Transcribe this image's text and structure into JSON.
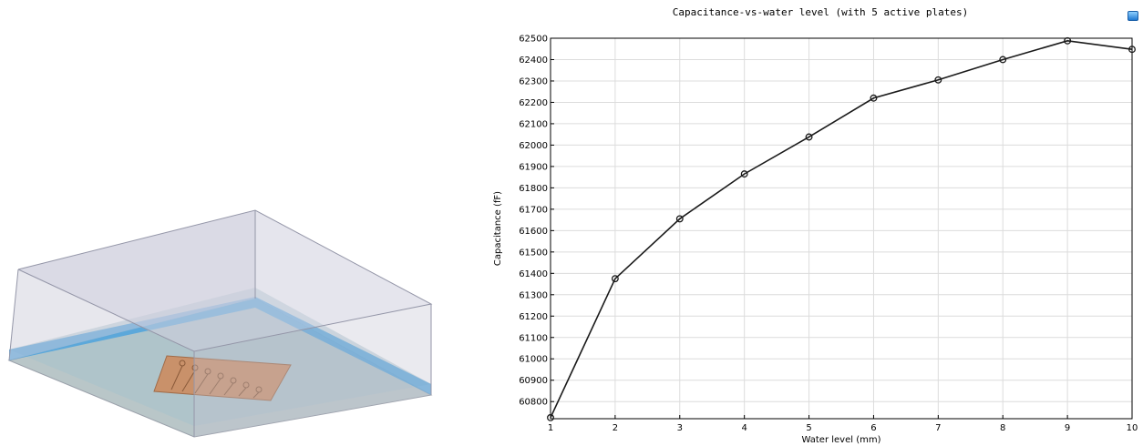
{
  "chart_data": {
    "type": "line",
    "title": "Capacitance-vs-water level (with 5 active plates)",
    "xlabel": "Water level (mm)",
    "ylabel": "Capacitance (fF)",
    "xlim": [
      1,
      10
    ],
    "ylim": [
      60720,
      62500
    ],
    "x_ticks": [
      1,
      2,
      3,
      4,
      5,
      6,
      7,
      8,
      9,
      10
    ],
    "y_ticks": [
      60800,
      60900,
      61000,
      61100,
      61200,
      61300,
      61400,
      61500,
      61600,
      61700,
      61800,
      61900,
      62000,
      62100,
      62200,
      62300,
      62400,
      62500
    ],
    "grid": true,
    "marker": "circle",
    "line_color": "#1a1a1a",
    "series": [
      {
        "x": [
          1,
          2,
          3,
          4,
          5,
          6,
          7,
          8,
          9,
          10
        ],
        "values": [
          60725,
          61375,
          61655,
          61865,
          62038,
          62220,
          62305,
          62400,
          62488,
          62448
        ]
      }
    ]
  },
  "scene": {
    "box_color": "#c9cad8",
    "water_color": "#4da3dd",
    "board_color": "#c9916a"
  },
  "toolbar": {
    "export_icon": "export-image-icon"
  }
}
